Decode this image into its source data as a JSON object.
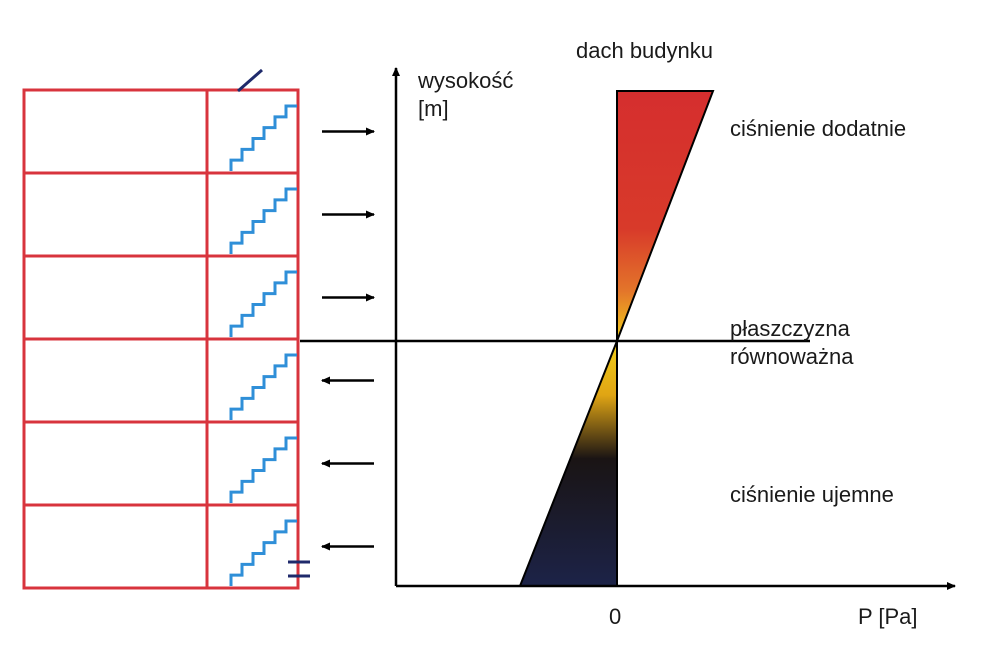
{
  "labels": {
    "y_axis_line1": "wysokość",
    "y_axis_line2": "[m]",
    "roof": "dach budynku",
    "positive_pressure": "ciśnienie dodatnie",
    "neutral_plane_line1": "płaszczyzna",
    "neutral_plane_line2": "równoważna",
    "negative_pressure": "ciśnienie ujemne",
    "x_zero": "0",
    "x_axis": "P [Pa]"
  },
  "building": {
    "floors": 6,
    "arrows_in": 3,
    "arrows_out": 3,
    "wall_color": "#d8343d",
    "stair_color": "#2f8fd8"
  },
  "colors": {
    "positive_fill": "#d52e2e",
    "gradient_top": "#f2cf1a",
    "gradient_mid": "#1a1414",
    "gradient_bottom": "#1c2348"
  }
}
